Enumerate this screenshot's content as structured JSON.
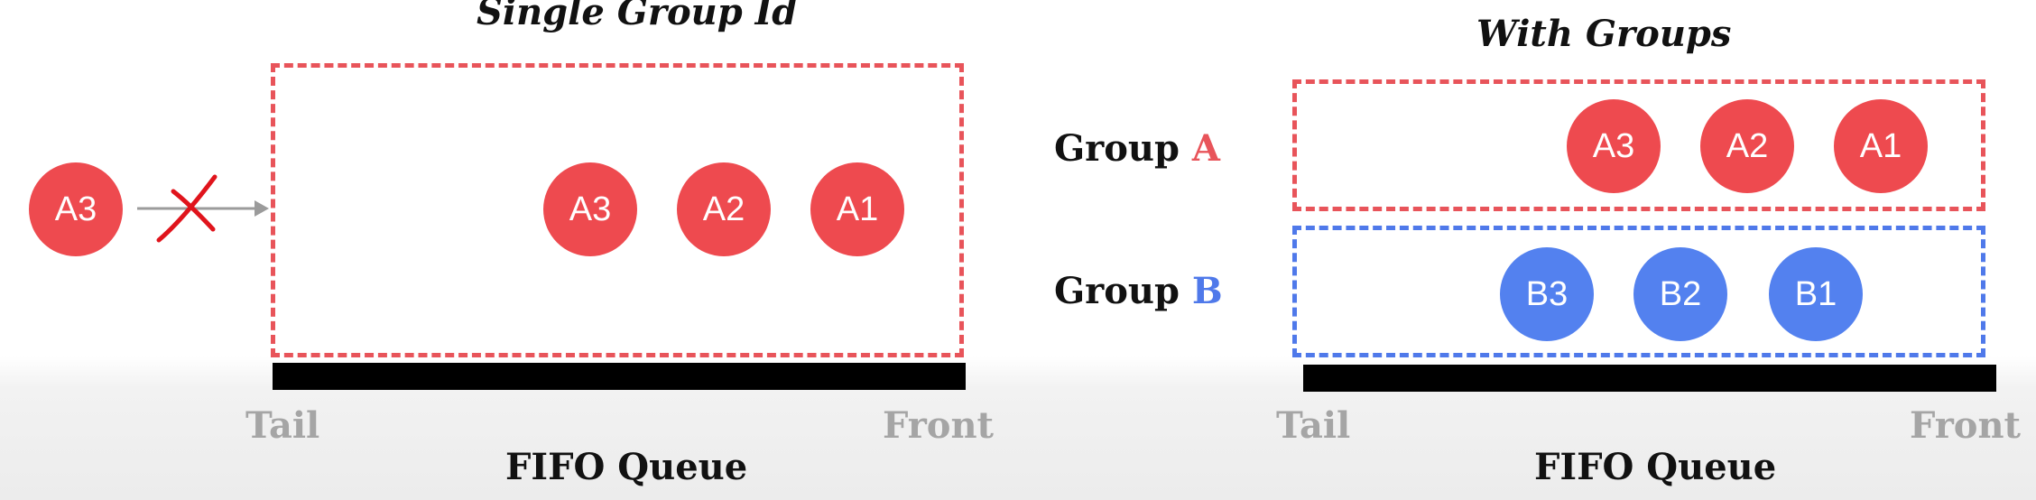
{
  "left": {
    "title": "Single Group Id",
    "incoming_message": "A3",
    "queue_messages": [
      "A3",
      "A2",
      "A1"
    ],
    "tail_label": "Tail",
    "front_label": "Front",
    "queue_label": "FIFO Queue"
  },
  "right": {
    "title": "With Groups",
    "group_a": {
      "prefix": "Group",
      "letter": "A",
      "messages": [
        "A3",
        "A2",
        "A1"
      ]
    },
    "group_b": {
      "prefix": "Group",
      "letter": "B",
      "messages": [
        "B3",
        "B2",
        "B1"
      ]
    },
    "tail_label": "Tail",
    "front_label": "Front",
    "queue_label": "FIFO Queue"
  },
  "colors": {
    "red": "#e8545a",
    "blue": "#4f79ea",
    "message_red": "#ee4a4f",
    "message_blue": "#5381ef",
    "muted_label": "#a5a5a5",
    "cross": "#e0141c"
  },
  "icons": {
    "blocked_arrow": "arrow-with-x-icon"
  }
}
